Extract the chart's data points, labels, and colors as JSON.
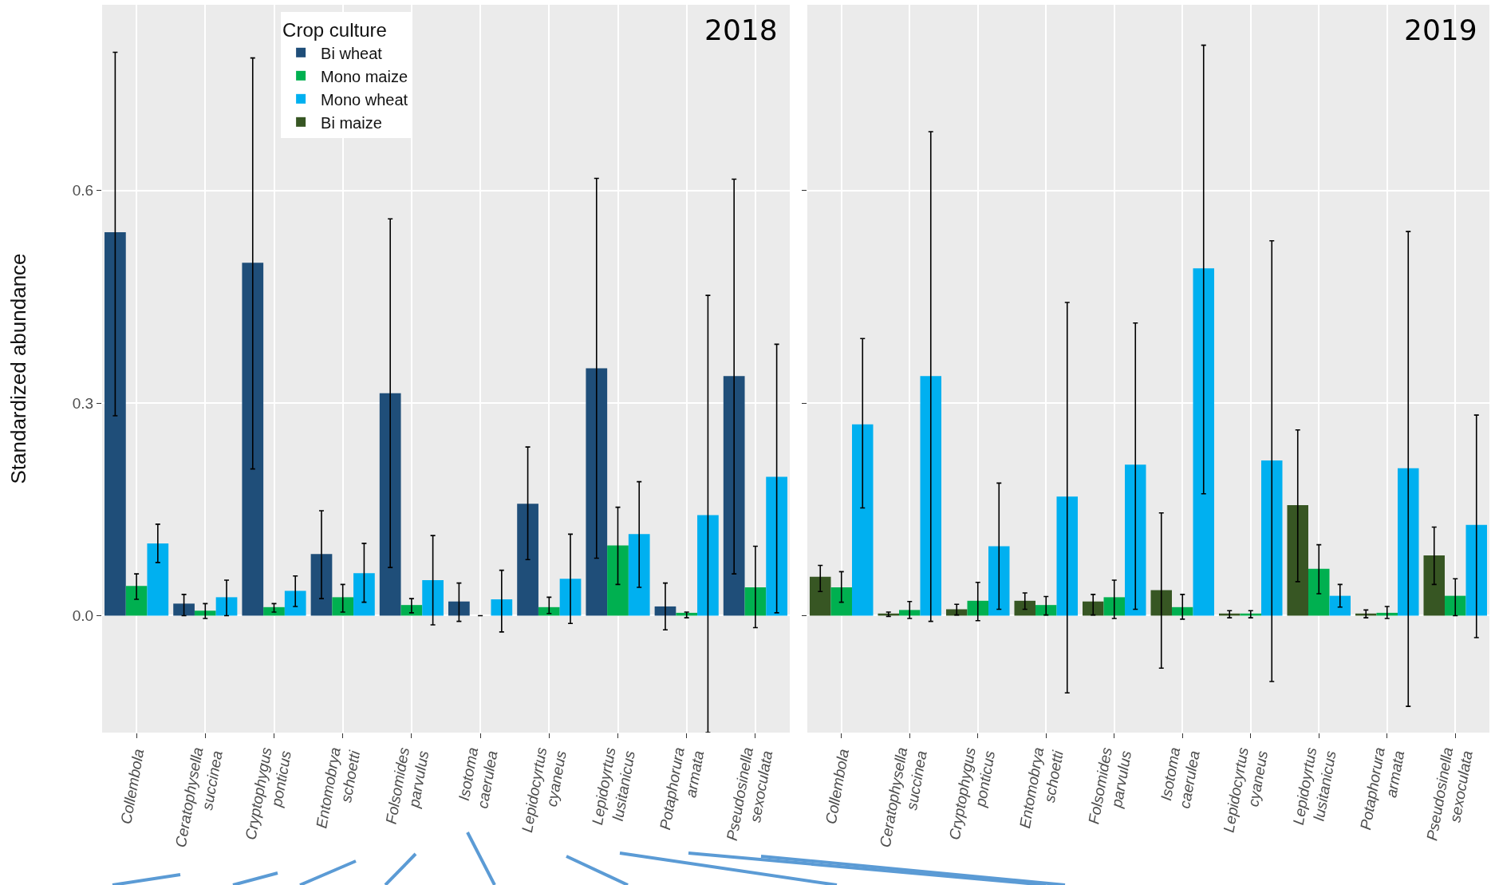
{
  "chart_data": [
    {
      "type": "bar",
      "title": "2018",
      "ylabel": "Standardized abundance",
      "legend_title": "Crop culture",
      "legend": "top left",
      "grid": true,
      "categories": [
        "Collembola",
        "Ceratophysella succinea",
        "Cryptophygus ponticus",
        "Entomobrya schoetti",
        "Folsomides parvulus",
        "Isotoma caerulea",
        "Lepidocyrtus cyaneus",
        "Lepidoyrtus lusitanicus",
        "Potaphorura armata",
        "Pseudosinella sexoculata"
      ],
      "ylim": [
        -0.165,
        0.862
      ],
      "yticks": [
        {
          "value": 0,
          "label": "0.0"
        },
        0.3,
        0.6
      ],
      "series": [
        {
          "name": "Bi wheat",
          "color": "#1f4e79",
          "values": [
            0.541,
            0.017,
            0.498,
            0.087,
            0.314,
            0.02,
            0.158,
            0.349,
            0.013,
            0.338
          ],
          "errors": [
            [
              0.282,
              0.795
            ],
            [
              0.0,
              0.03
            ],
            [
              0.207,
              0.787
            ],
            [
              0.024,
              0.148
            ],
            [
              0.068,
              0.56
            ],
            [
              -0.008,
              0.046
            ],
            [
              0.079,
              0.238
            ],
            [
              0.081,
              0.617
            ],
            [
              -0.02,
              0.046
            ],
            [
              0.059,
              0.616
            ]
          ]
        },
        {
          "name": "Mono maize",
          "color": "#00b050",
          "values": [
            0.042,
            0.007,
            0.012,
            0.026,
            0.015,
            0.0,
            0.012,
            0.099,
            0.004,
            0.04
          ],
          "errors": [
            [
              0.023,
              0.059
            ],
            [
              -0.004,
              0.017
            ],
            [
              0.005,
              0.017
            ],
            [
              0.005,
              0.044
            ],
            [
              0.004,
              0.024
            ],
            null,
            [
              0.003,
              0.026
            ],
            [
              0.044,
              0.153
            ],
            [
              -0.003,
              0.005
            ],
            [
              -0.017,
              0.098
            ]
          ]
        },
        {
          "name": "Mono wheat",
          "color": "#00b0f0",
          "values": [
            0.102,
            0.026,
            0.035,
            0.06,
            0.05,
            0.023,
            0.052,
            0.115,
            0.142,
            0.196
          ],
          "errors": [
            [
              0.075,
              0.129
            ],
            [
              0.0,
              0.05
            ],
            [
              0.013,
              0.056
            ],
            [
              0.019,
              0.102
            ],
            [
              -0.013,
              0.113
            ],
            [
              -0.023,
              0.064
            ],
            [
              -0.011,
              0.115
            ],
            [
              0.04,
              0.189
            ],
            [
              -0.165,
              0.452
            ],
            [
              0.004,
              0.383
            ]
          ]
        },
        {
          "name": "Bi maize",
          "color": "#375623",
          "values": [
            null,
            null,
            null,
            null,
            null,
            null,
            null,
            null,
            null,
            null
          ]
        }
      ]
    },
    {
      "type": "bar",
      "title": "2019",
      "grid": true,
      "tick_labels": "x",
      "categories": [
        "Collembola",
        "Ceratophysella succinea",
        "Cryptophygus ponticus",
        "Entomobrya schoetti",
        "Folsomides parvulus",
        "Isotoma caerulea",
        "Lepidocyrtus cyaneus",
        "Lepidoyrtus lusitanicus",
        "Potaphorura armata",
        "Pseudosinella sexoculata"
      ],
      "ylim": [
        -0.165,
        0.862
      ],
      "yticks": [
        {
          "value": 0,
          "label": null
        },
        {
          "value": 0.3,
          "label": null
        },
        {
          "value": 0.6,
          "label": null
        }
      ],
      "series": [
        {
          "color": "#375623",
          "values": [
            0.055,
            0.003,
            0.009,
            0.021,
            0.02,
            0.036,
            0.003,
            0.156,
            0.003,
            0.085
          ],
          "errors": [
            [
              0.034,
              0.071
            ],
            [
              -0.001,
              0.005
            ],
            [
              0.001,
              0.016
            ],
            [
              0.009,
              0.032
            ],
            [
              0.001,
              0.03
            ],
            [
              -0.074,
              0.145
            ],
            [
              -0.003,
              0.007
            ],
            [
              0.048,
              0.262
            ],
            [
              -0.003,
              0.008
            ],
            [
              0.044,
              0.125
            ]
          ]
        },
        {
          "color": "#00b050",
          "values": [
            0.04,
            0.008,
            0.021,
            0.015,
            0.026,
            0.012,
            0.003,
            0.066,
            0.004,
            0.028
          ],
          "errors": [
            [
              0.019,
              0.062
            ],
            [
              -0.004,
              0.02
            ],
            [
              -0.007,
              0.047
            ],
            [
              0.001,
              0.027
            ],
            [
              -0.004,
              0.05
            ],
            [
              -0.005,
              0.03
            ],
            [
              -0.003,
              0.007
            ],
            [
              0.031,
              0.1
            ],
            [
              -0.004,
              0.013
            ],
            [
              0.0,
              0.052
            ]
          ]
        },
        {
          "color": "#00b0f0",
          "values": [
            0.27,
            0.338,
            0.098,
            0.168,
            0.213,
            0.49,
            0.219,
            0.028,
            0.208,
            0.128
          ],
          "errors": [
            [
              0.152,
              0.391
            ],
            [
              -0.008,
              0.683
            ],
            [
              0.009,
              0.187
            ],
            [
              -0.109,
              0.442
            ],
            [
              0.009,
              0.413
            ],
            [
              0.172,
              0.805
            ],
            [
              -0.093,
              0.529
            ],
            [
              0.012,
              0.044
            ],
            [
              -0.128,
              0.542
            ],
            [
              -0.031,
              0.283
            ]
          ]
        }
      ]
    }
  ]
}
